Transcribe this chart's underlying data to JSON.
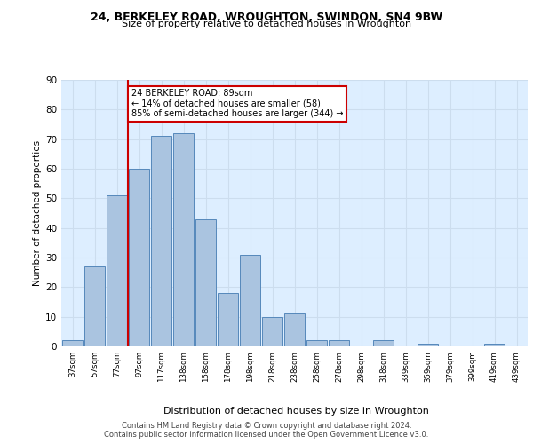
{
  "title1": "24, BERKELEY ROAD, WROUGHTON, SWINDON, SN4 9BW",
  "title2": "Size of property relative to detached houses in Wroughton",
  "xlabel": "Distribution of detached houses by size in Wroughton",
  "ylabel": "Number of detached properties",
  "categories": [
    "37sqm",
    "57sqm",
    "77sqm",
    "97sqm",
    "117sqm",
    "138sqm",
    "158sqm",
    "178sqm",
    "198sqm",
    "218sqm",
    "238sqm",
    "258sqm",
    "278sqm",
    "298sqm",
    "318sqm",
    "339sqm",
    "359sqm",
    "379sqm",
    "399sqm",
    "419sqm",
    "439sqm"
  ],
  "values": [
    2,
    27,
    51,
    60,
    71,
    72,
    43,
    18,
    31,
    10,
    11,
    2,
    2,
    0,
    2,
    0,
    1,
    0,
    0,
    1,
    0
  ],
  "bar_color": "#aac4e0",
  "bar_edge_color": "#5588bb",
  "annotation_text": "24 BERKELEY ROAD: 89sqm\n← 14% of detached houses are smaller (58)\n85% of semi-detached houses are larger (344) →",
  "annotation_box_color": "#ffffff",
  "annotation_box_edge": "#cc0000",
  "property_line_color": "#cc0000",
  "ylim": [
    0,
    90
  ],
  "yticks": [
    0,
    10,
    20,
    30,
    40,
    50,
    60,
    70,
    80,
    90
  ],
  "grid_color": "#ccddee",
  "background_color": "#ddeeff",
  "footer_text": "Contains HM Land Registry data © Crown copyright and database right 2024.\nContains public sector information licensed under the Open Government Licence v3.0."
}
